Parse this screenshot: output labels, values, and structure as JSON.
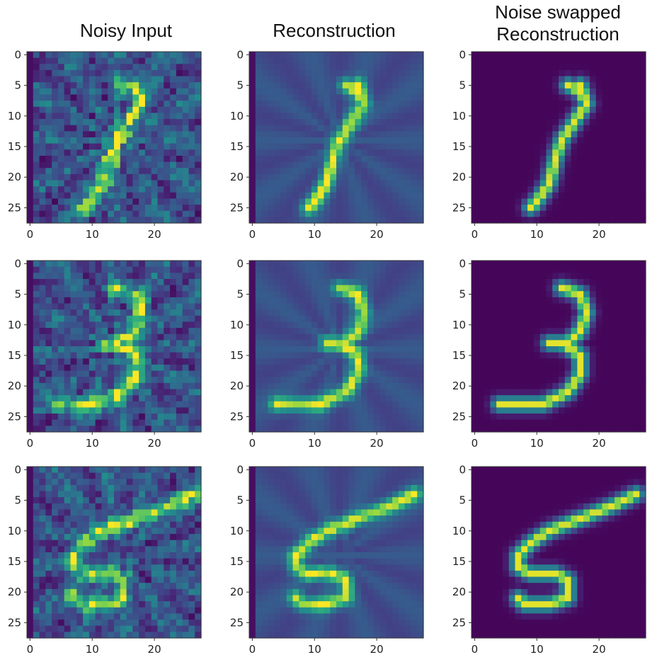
{
  "columns": [
    {
      "title": "Noisy Input",
      "style": "noisy"
    },
    {
      "title": "Reconstruction",
      "style": "recon"
    },
    {
      "title_line1": "Noise swapped",
      "title_line2": "Reconstruction",
      "style": "clean"
    }
  ],
  "rows": [
    {
      "digit": "1"
    },
    {
      "digit": "3"
    },
    {
      "digit": "5"
    }
  ],
  "axes": {
    "y_ticks": [
      "0",
      "5",
      "10",
      "15",
      "20",
      "25"
    ],
    "x_ticks": [
      "0",
      "10",
      "20"
    ],
    "image_size": 28
  },
  "colormap": "viridis",
  "colors": {
    "dark": "#440154",
    "mid": "#31688e",
    "teal": "#21918c",
    "green": "#5ec962",
    "yellow": "#fde725"
  }
}
